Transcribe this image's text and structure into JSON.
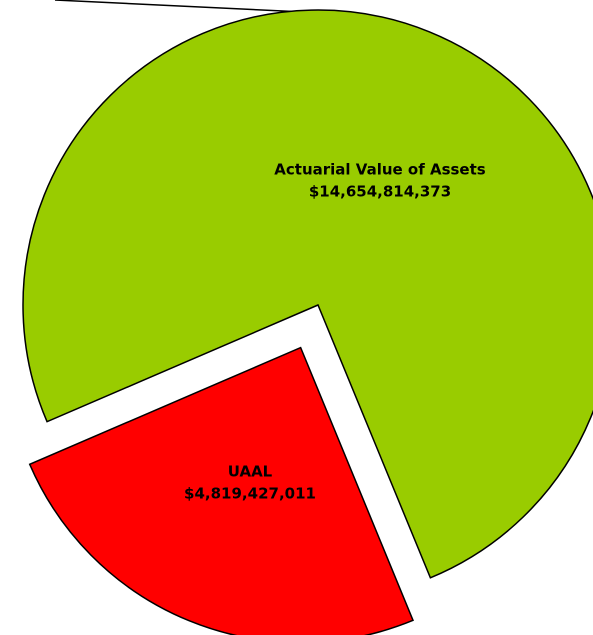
{
  "chart_data": {
    "type": "pie",
    "categories": [
      "Actuarial Value of Assets",
      "UAAL"
    ],
    "values": [
      14654814373,
      4819427011
    ],
    "value_labels": [
      "$14,654,814,373",
      "$4,819,427,011"
    ],
    "colors": [
      "#99cc00",
      "#ff0000"
    ]
  }
}
